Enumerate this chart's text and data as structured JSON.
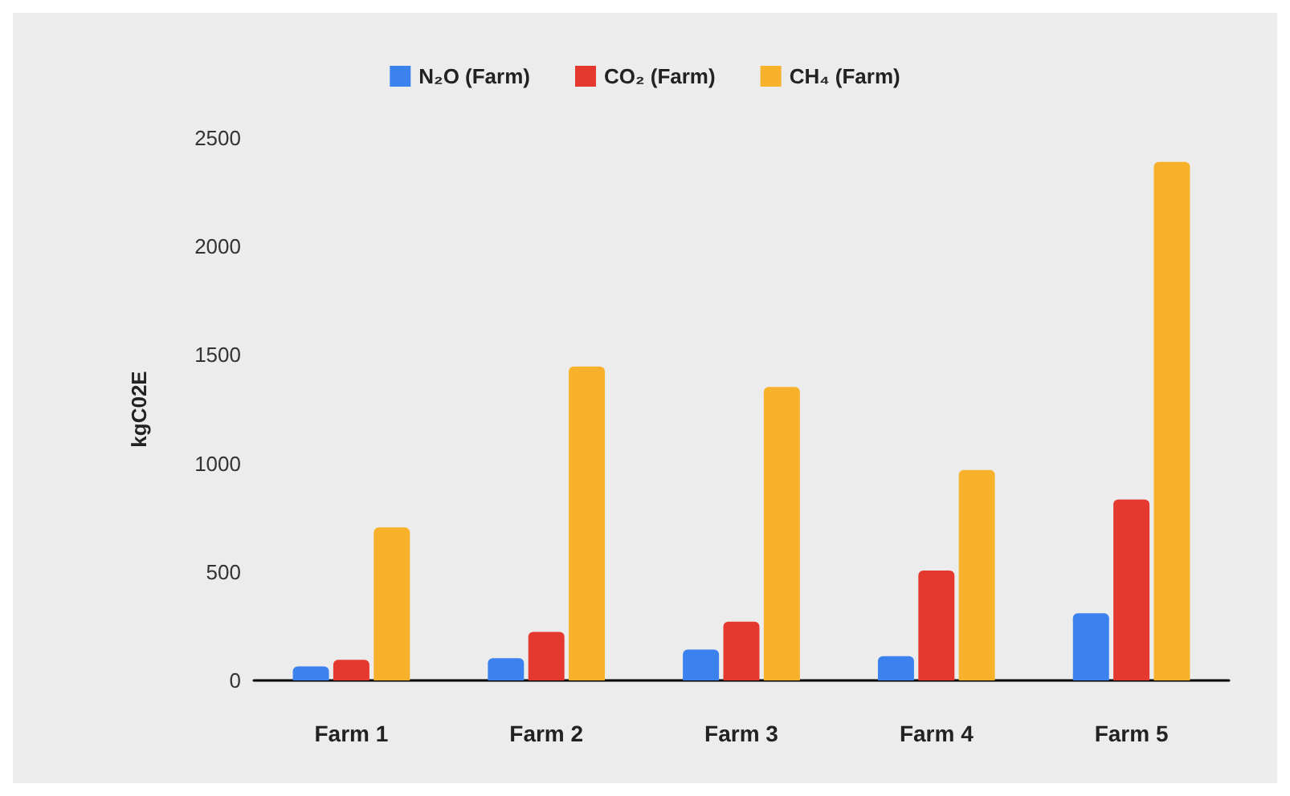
{
  "chart_data": {
    "type": "bar",
    "ylabel": "kgC02E",
    "categories": [
      "Farm 1",
      "Farm 2",
      "Farm 3",
      "Farm 4",
      "Farm 5"
    ],
    "series": [
      {
        "name": "N₂O (Farm)",
        "color": "#3b82ee",
        "values": [
          65,
          103,
          142,
          112,
          310
        ]
      },
      {
        "name": "CO₂ (Farm)",
        "color": "#e5392f",
        "values": [
          95,
          224,
          271,
          507,
          834
        ]
      },
      {
        "name": "CH₄ (Farm)",
        "color": "#f7b12a",
        "values": [
          705,
          1447,
          1353,
          970,
          2390
        ]
      }
    ],
    "ylim": [
      0,
      2500
    ],
    "yticks": [
      0,
      500,
      1000,
      1500,
      2000,
      2500
    ],
    "grid": false,
    "legend": "top"
  }
}
